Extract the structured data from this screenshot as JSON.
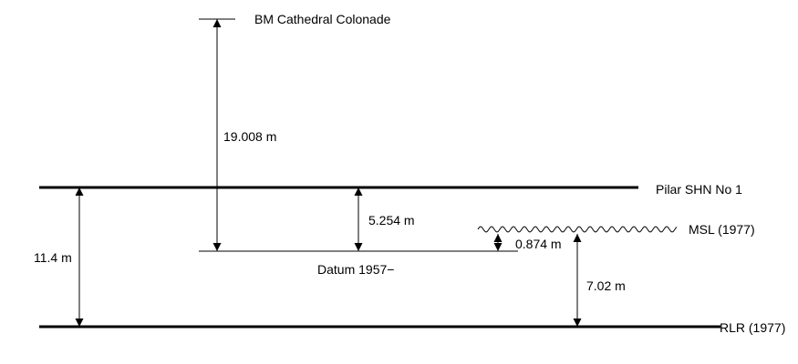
{
  "levels": {
    "bm": "BM Cathedral Colonade",
    "pilar": "Pilar SHN No 1",
    "msl": "MSL (1977)",
    "datum": "Datum 1957−",
    "rlr": "RLR (1977)"
  },
  "measurements": {
    "bm_to_datum": "19.008 m",
    "pilar_to_datum": "5.254 m",
    "datum_to_msl": "0.874 m",
    "rlr_to_msl": "7.02 m",
    "pilar_to_rlr": "11.4 m"
  },
  "colors": {
    "line": "#000000",
    "background": "#ffffff"
  }
}
